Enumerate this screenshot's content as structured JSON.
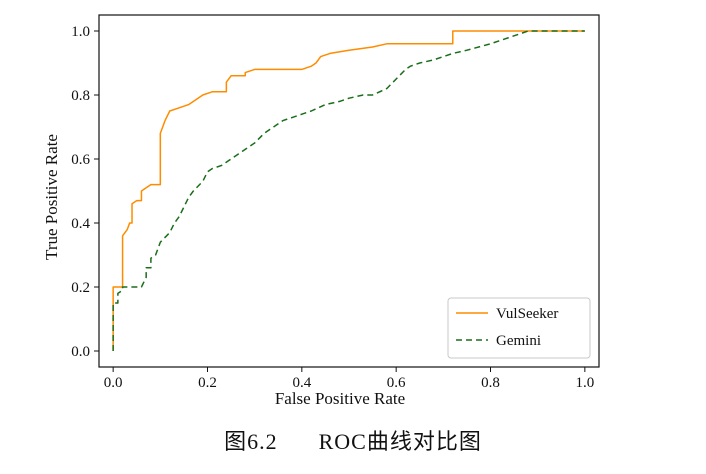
{
  "chart_data": {
    "type": "line",
    "title": "",
    "xlabel": "False Positive Rate",
    "ylabel": "True Positive Rate",
    "xlim": [
      -0.03,
      1.03
    ],
    "ylim": [
      -0.05,
      1.05
    ],
    "xticks": [
      0.0,
      0.2,
      0.4,
      0.6,
      0.8,
      1.0
    ],
    "yticks": [
      0.0,
      0.2,
      0.4,
      0.6,
      0.8,
      1.0
    ],
    "grid": false,
    "legend_position": "bottom-right",
    "series": [
      {
        "name": "VulSeeker",
        "color": "#ff8c00",
        "dash": "solid",
        "points": [
          [
            0.0,
            0.0
          ],
          [
            0.0,
            0.2
          ],
          [
            0.02,
            0.2
          ],
          [
            0.02,
            0.36
          ],
          [
            0.03,
            0.38
          ],
          [
            0.035,
            0.4
          ],
          [
            0.04,
            0.4
          ],
          [
            0.04,
            0.46
          ],
          [
            0.05,
            0.47
          ],
          [
            0.06,
            0.47
          ],
          [
            0.06,
            0.5
          ],
          [
            0.07,
            0.51
          ],
          [
            0.08,
            0.52
          ],
          [
            0.1,
            0.52
          ],
          [
            0.1,
            0.68
          ],
          [
            0.11,
            0.72
          ],
          [
            0.12,
            0.75
          ],
          [
            0.14,
            0.76
          ],
          [
            0.16,
            0.77
          ],
          [
            0.18,
            0.79
          ],
          [
            0.19,
            0.8
          ],
          [
            0.21,
            0.81
          ],
          [
            0.22,
            0.81
          ],
          [
            0.24,
            0.81
          ],
          [
            0.24,
            0.84
          ],
          [
            0.25,
            0.86
          ],
          [
            0.28,
            0.86
          ],
          [
            0.28,
            0.87
          ],
          [
            0.3,
            0.88
          ],
          [
            0.35,
            0.88
          ],
          [
            0.4,
            0.88
          ],
          [
            0.42,
            0.89
          ],
          [
            0.43,
            0.9
          ],
          [
            0.44,
            0.92
          ],
          [
            0.46,
            0.93
          ],
          [
            0.5,
            0.94
          ],
          [
            0.55,
            0.95
          ],
          [
            0.58,
            0.96
          ],
          [
            0.6,
            0.96
          ],
          [
            0.72,
            0.96
          ],
          [
            0.72,
            1.0
          ],
          [
            1.0,
            1.0
          ]
        ]
      },
      {
        "name": "Gemini",
        "color": "#1a6e1a",
        "dash": "6,4",
        "points": [
          [
            0.0,
            0.0
          ],
          [
            0.0,
            0.15
          ],
          [
            0.01,
            0.15
          ],
          [
            0.01,
            0.18
          ],
          [
            0.02,
            0.19
          ],
          [
            0.02,
            0.2
          ],
          [
            0.06,
            0.2
          ],
          [
            0.07,
            0.23
          ],
          [
            0.07,
            0.26
          ],
          [
            0.08,
            0.26
          ],
          [
            0.08,
            0.29
          ],
          [
            0.09,
            0.3
          ],
          [
            0.1,
            0.34
          ],
          [
            0.12,
            0.37
          ],
          [
            0.13,
            0.4
          ],
          [
            0.14,
            0.42
          ],
          [
            0.15,
            0.45
          ],
          [
            0.16,
            0.48
          ],
          [
            0.17,
            0.5
          ],
          [
            0.19,
            0.53
          ],
          [
            0.2,
            0.56
          ],
          [
            0.21,
            0.57
          ],
          [
            0.23,
            0.58
          ],
          [
            0.25,
            0.6
          ],
          [
            0.27,
            0.62
          ],
          [
            0.29,
            0.64
          ],
          [
            0.3,
            0.65
          ],
          [
            0.32,
            0.68
          ],
          [
            0.34,
            0.7
          ],
          [
            0.36,
            0.72
          ],
          [
            0.38,
            0.73
          ],
          [
            0.4,
            0.74
          ],
          [
            0.42,
            0.75
          ],
          [
            0.45,
            0.77
          ],
          [
            0.48,
            0.78
          ],
          [
            0.5,
            0.79
          ],
          [
            0.53,
            0.8
          ],
          [
            0.55,
            0.8
          ],
          [
            0.58,
            0.82
          ],
          [
            0.6,
            0.85
          ],
          [
            0.62,
            0.88
          ],
          [
            0.63,
            0.89
          ],
          [
            0.65,
            0.9
          ],
          [
            0.68,
            0.91
          ],
          [
            0.7,
            0.92
          ],
          [
            0.72,
            0.93
          ],
          [
            0.75,
            0.94
          ],
          [
            0.8,
            0.96
          ],
          [
            0.84,
            0.98
          ],
          [
            0.86,
            0.99
          ],
          [
            0.88,
            1.0
          ],
          [
            1.0,
            1.0
          ]
        ]
      }
    ]
  },
  "caption": {
    "figure_number": "图6.2",
    "text": "ROC曲线对比图"
  }
}
